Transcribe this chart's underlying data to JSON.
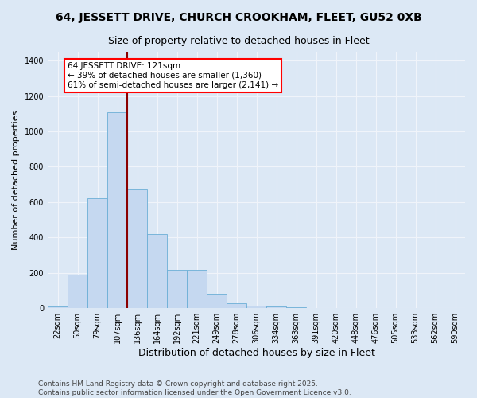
{
  "title1": "64, JESSETT DRIVE, CHURCH CROOKHAM, FLEET, GU52 0XB",
  "title2": "Size of property relative to detached houses in Fleet",
  "xlabel": "Distribution of detached houses by size in Fleet",
  "ylabel": "Number of detached properties",
  "categories": [
    "22sqm",
    "50sqm",
    "79sqm",
    "107sqm",
    "136sqm",
    "164sqm",
    "192sqm",
    "221sqm",
    "249sqm",
    "278sqm",
    "306sqm",
    "334sqm",
    "363sqm",
    "391sqm",
    "420sqm",
    "448sqm",
    "476sqm",
    "505sqm",
    "533sqm",
    "562sqm",
    "590sqm"
  ],
  "values": [
    10,
    190,
    620,
    1110,
    670,
    420,
    215,
    215,
    80,
    30,
    15,
    10,
    5,
    2,
    2,
    1,
    1,
    0,
    0,
    0,
    0
  ],
  "bar_color": "#c5d8f0",
  "bar_edge_color": "#6baed6",
  "vline_x": 3.5,
  "vline_color": "#8b0000",
  "annotation_line1": "64 JESSETT DRIVE: 121sqm",
  "annotation_line2": "← 39% of detached houses are smaller (1,360)",
  "annotation_line3": "61% of semi-detached houses are larger (2,141) →",
  "ylim": [
    0,
    1450
  ],
  "yticks": [
    0,
    200,
    400,
    600,
    800,
    1000,
    1200,
    1400
  ],
  "background_color": "#dce8f5",
  "grid_color": "#f0f4fa",
  "footer": "Contains HM Land Registry data © Crown copyright and database right 2025.\nContains public sector information licensed under the Open Government Licence v3.0.",
  "title1_fontsize": 10,
  "title2_fontsize": 9,
  "xlabel_fontsize": 9,
  "ylabel_fontsize": 8,
  "tick_fontsize": 7,
  "annotation_fontsize": 7.5,
  "footer_fontsize": 6.5
}
